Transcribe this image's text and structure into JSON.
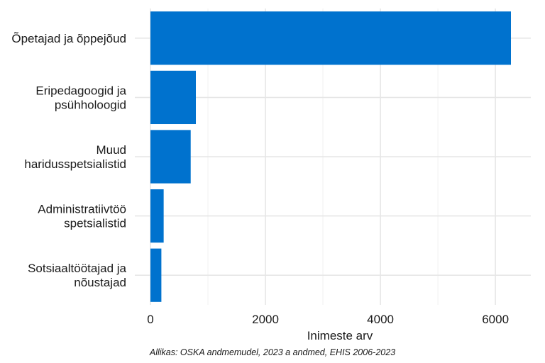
{
  "chart_data": {
    "type": "bar",
    "orientation": "horizontal",
    "categories": [
      [
        "Õpetajad ja õppejõud"
      ],
      [
        "Eripedagoogid ja",
        "psühholoogid"
      ],
      [
        "Muud",
        "haridusspetsialistid"
      ],
      [
        "Administratiivtöö",
        "spetsialistid"
      ],
      [
        "Sotsiaaltöötajad ja",
        "nõustajad"
      ]
    ],
    "values": [
      6270,
      790,
      700,
      230,
      190
    ],
    "xlabel": "Inimeste arv",
    "ylabel": "",
    "xlim": [
      0,
      6600
    ],
    "xticks": [
      0,
      2000,
      4000,
      6000
    ],
    "xticks_minor": [
      1000,
      3000,
      5000
    ],
    "grid": true,
    "bar_color": "#0072ce",
    "caption": "Allikas: OSKA andmemudel, 2023 a andmed, EHIS 2006-2023"
  }
}
